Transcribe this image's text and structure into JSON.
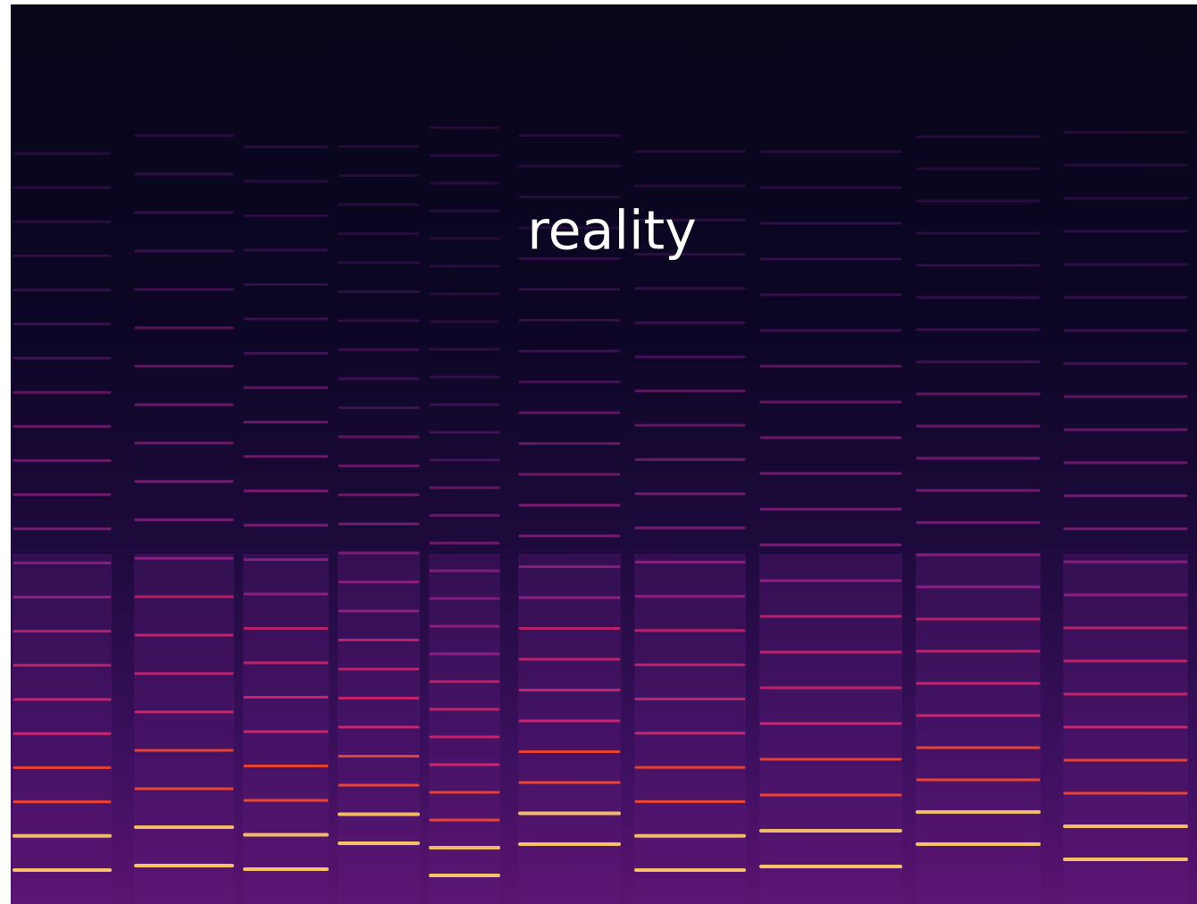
{
  "slide": {
    "title": "reality"
  }
}
